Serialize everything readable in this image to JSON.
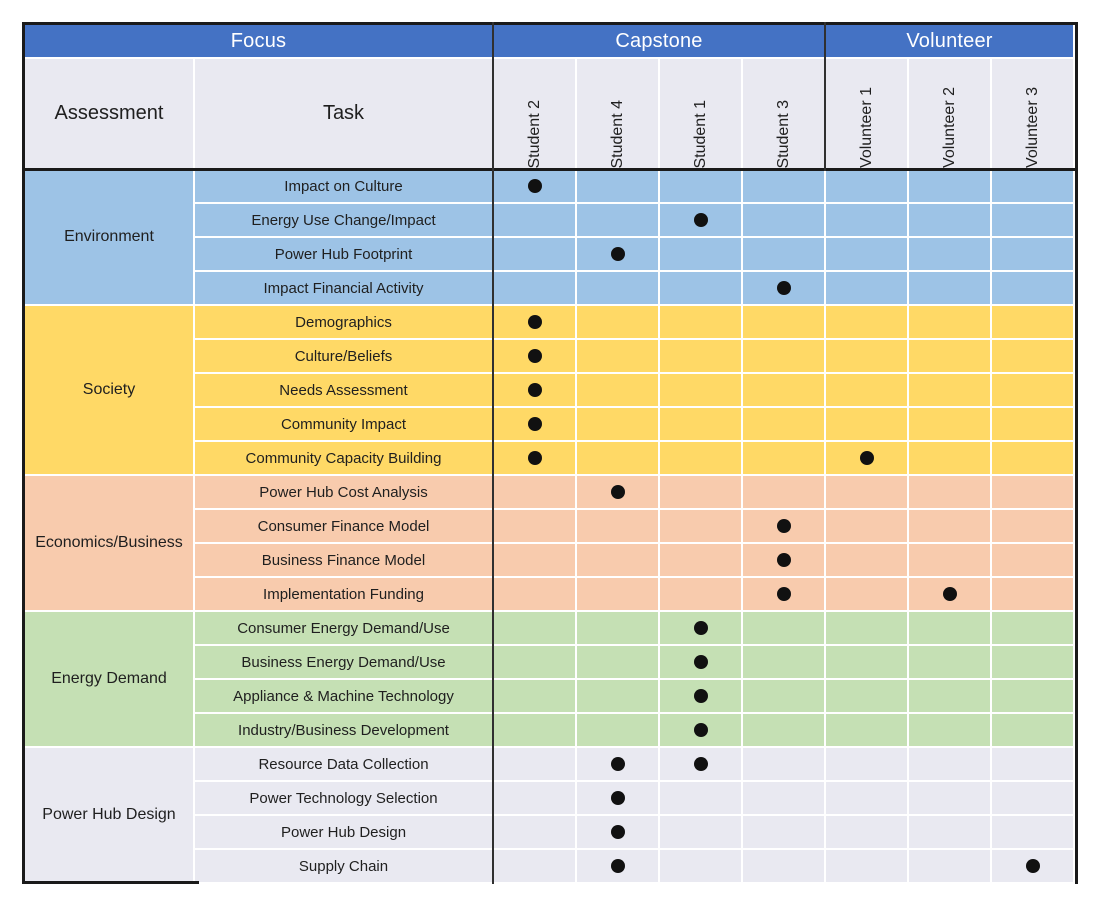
{
  "chart_data": {
    "type": "table",
    "title": "",
    "header": {
      "focus_group": "Focus",
      "capstone_group": "Capstone",
      "volunteer_group": "Volunteer",
      "assessment_col": "Assessment",
      "task_col": "Task"
    },
    "column_groups": [
      {
        "label": "Focus",
        "span": 2
      },
      {
        "label": "Capstone",
        "span": 4
      },
      {
        "label": "Volunteer",
        "span": 3
      }
    ],
    "person_columns": [
      "Student 2",
      "Student 4",
      "Student 1",
      "Student 3",
      "Volunteer 1",
      "Volunteer 2",
      "Volunteer 3"
    ],
    "mark_symbol": "●",
    "sections": [
      {
        "assessment": "Environment",
        "color": "#9DC3E6",
        "rows": [
          {
            "task": "Impact on Culture",
            "assigned": [
              "Student 2"
            ]
          },
          {
            "task": "Energy Use Change/Impact",
            "assigned": [
              "Student 1"
            ]
          },
          {
            "task": "Power Hub Footprint",
            "assigned": [
              "Student 4"
            ]
          },
          {
            "task": "Impact Financial Activity",
            "assigned": [
              "Student 3"
            ]
          }
        ]
      },
      {
        "assessment": "Society",
        "color": "#FFD966",
        "rows": [
          {
            "task": "Demographics",
            "assigned": [
              "Student 2"
            ]
          },
          {
            "task": "Culture/Beliefs",
            "assigned": [
              "Student 2"
            ]
          },
          {
            "task": "Needs Assessment",
            "assigned": [
              "Student 2"
            ]
          },
          {
            "task": "Community Impact",
            "assigned": [
              "Student 2"
            ]
          },
          {
            "task": "Community Capacity Building",
            "assigned": [
              "Student 2",
              "Volunteer 1"
            ]
          }
        ]
      },
      {
        "assessment": "Economics/Business",
        "color": "#F8CBAD",
        "rows": [
          {
            "task": "Power Hub Cost Analysis",
            "assigned": [
              "Student 4"
            ]
          },
          {
            "task": "Consumer Finance Model",
            "assigned": [
              "Student 3"
            ]
          },
          {
            "task": "Business Finance Model",
            "assigned": [
              "Student 3"
            ]
          },
          {
            "task": "Implementation Funding",
            "assigned": [
              "Student 3",
              "Volunteer 2"
            ]
          }
        ]
      },
      {
        "assessment": "Energy Demand",
        "color": "#C5E0B4",
        "rows": [
          {
            "task": "Consumer Energy Demand/Use",
            "assigned": [
              "Student 1"
            ]
          },
          {
            "task": "Business Energy Demand/Use",
            "assigned": [
              "Student 1"
            ]
          },
          {
            "task": "Appliance & Machine Technology",
            "assigned": [
              "Student 1"
            ]
          },
          {
            "task": "Industry/Business Development",
            "assigned": [
              "Student 1"
            ]
          }
        ]
      },
      {
        "assessment": "Power Hub Design",
        "color": "#E9E9F1",
        "rows": [
          {
            "task": "Resource Data Collection",
            "assigned": [
              "Student 4",
              "Student 1"
            ]
          },
          {
            "task": "Power Technology Selection",
            "assigned": [
              "Student 4"
            ]
          },
          {
            "task": "Power Hub Design",
            "assigned": [
              "Student 4"
            ]
          },
          {
            "task": "Supply Chain",
            "assigned": [
              "Student 4",
              "Volunteer 3"
            ]
          }
        ]
      }
    ],
    "styles": {
      "header_bg": "#4472C4",
      "header_text": "#FFFFFF",
      "label_bg": "#E9E9F1",
      "grid_line_color": "#FFFFFF",
      "outer_border_color": "#1A1A1A",
      "mark_color": "#111111"
    }
  }
}
